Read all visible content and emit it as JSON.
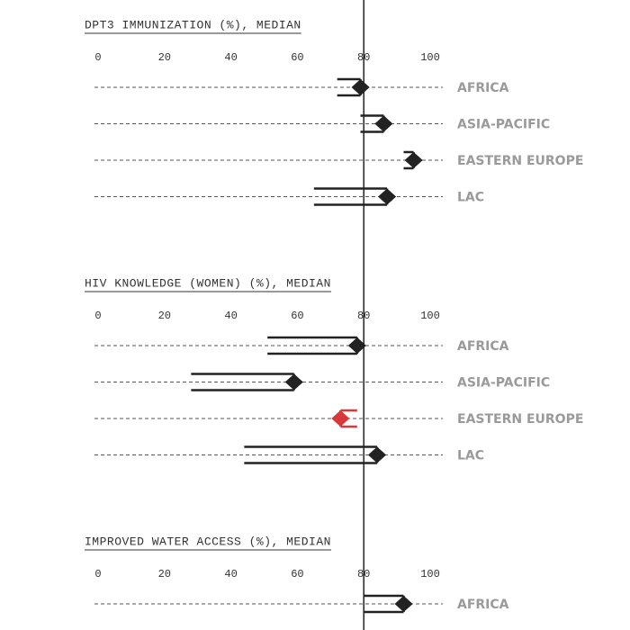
{
  "chart_data": [
    {
      "type": "range-arrow",
      "title": "DPT3 IMMUNIZATION (%), MEDIAN",
      "categories": [
        "AFRICA",
        "ASIA-PACIFIC",
        "EASTERN EUROPE",
        "LAC"
      ],
      "start": [
        72,
        79,
        92,
        65
      ],
      "end": [
        79,
        86,
        95,
        87
      ],
      "colors": [
        "#222222",
        "#222222",
        "#222222",
        "#222222"
      ],
      "xlim": [
        0,
        100
      ],
      "xticks": [
        0,
        20,
        40,
        60,
        80,
        100
      ],
      "reference_line": 80
    },
    {
      "type": "range-arrow",
      "title": "HIV KNOWLEDGE (WOMEN) (%), MEDIAN",
      "categories": [
        "AFRICA",
        "ASIA-PACIFIC",
        "EASTERN EUROPE",
        "LAC"
      ],
      "start": [
        51,
        28,
        78,
        44
      ],
      "end": [
        78,
        59,
        73,
        84
      ],
      "colors": [
        "#222222",
        "#222222",
        "#d9383a",
        "#222222"
      ],
      "xlim": [
        0,
        100
      ],
      "xticks": [
        0,
        20,
        40,
        60,
        80,
        100
      ],
      "reference_line": 80
    },
    {
      "type": "range-arrow",
      "title": "IMPROVED WATER ACCESS (%), MEDIAN",
      "categories": [
        "AFRICA"
      ],
      "start": [
        80
      ],
      "end": [
        92
      ],
      "colors": [
        "#222222"
      ],
      "xlim": [
        0,
        100
      ],
      "xticks": [
        0,
        20,
        40,
        60,
        80,
        100
      ],
      "reference_line": 80
    }
  ]
}
